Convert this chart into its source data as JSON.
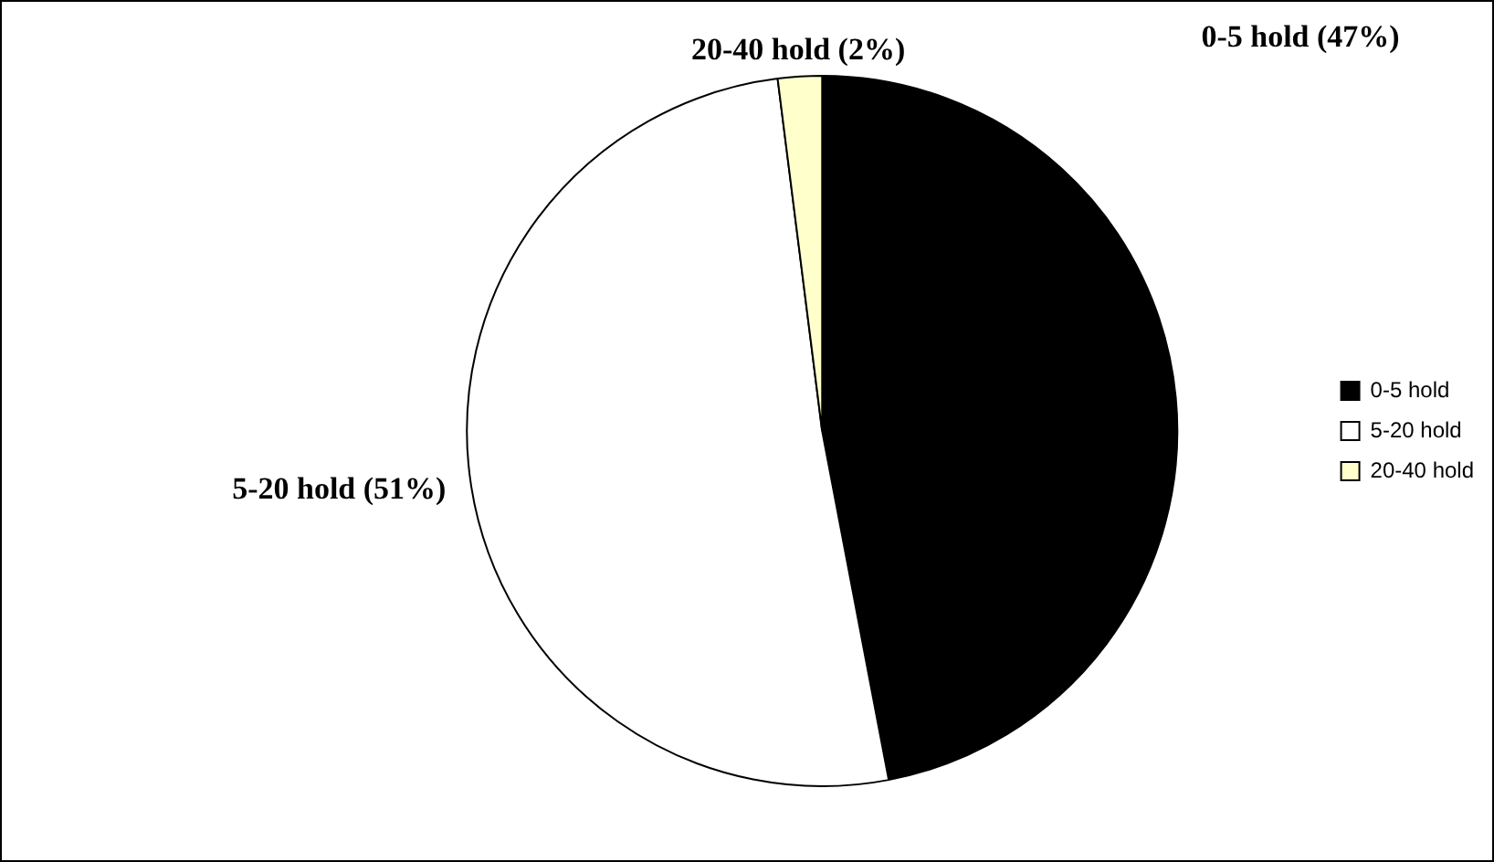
{
  "chart_data": {
    "type": "pie",
    "categories": [
      "0-5 hold",
      "5-20 hold",
      "20-40 hold"
    ],
    "values": [
      47,
      51,
      2
    ],
    "colors": [
      "#000000",
      "#ffffff",
      "#ffffcc"
    ],
    "value_labels": [
      "0-5 hold (47%)",
      "5-20 hold (51%)",
      "20-40 hold (2%)"
    ],
    "legend": "right"
  }
}
